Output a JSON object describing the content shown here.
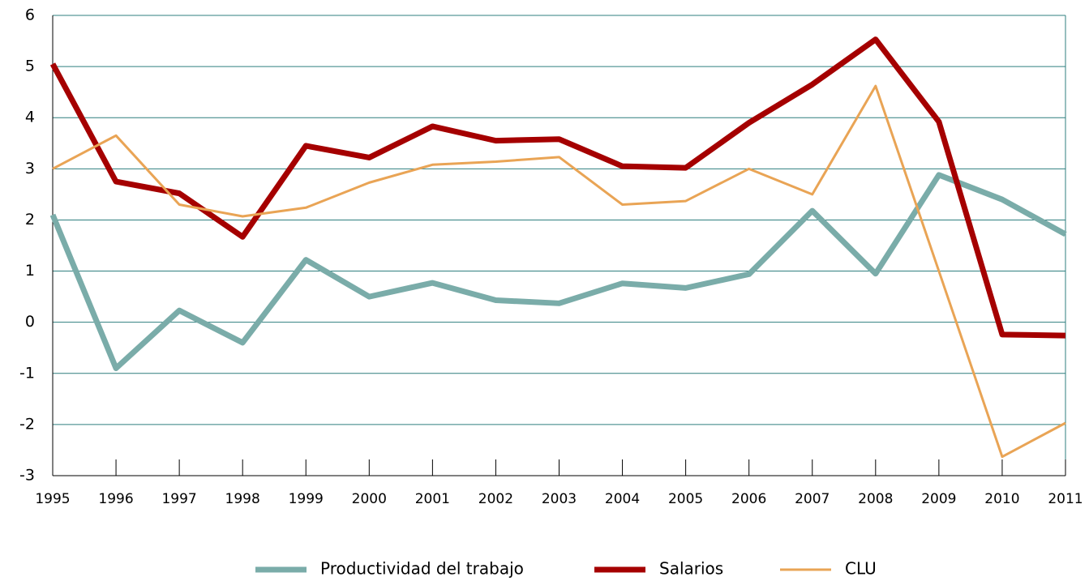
{
  "chart_data": {
    "type": "line",
    "categories": [
      "1995",
      "1996",
      "1997",
      "1998",
      "1999",
      "2000",
      "2001",
      "2002",
      "2003",
      "2004",
      "2005",
      "2006",
      "2007",
      "2008",
      "2009",
      "2010",
      "2011"
    ],
    "series": [
      {
        "name": "Productividad del trabajo",
        "color": "#7aaca9",
        "values": [
          2.1,
          -0.9,
          0.23,
          -0.4,
          1.22,
          0.5,
          0.77,
          0.43,
          0.37,
          0.76,
          0.67,
          0.94,
          2.18,
          0.95,
          2.88,
          2.4,
          1.72
        ]
      },
      {
        "name": "Salarios",
        "color": "#a50000",
        "values": [
          5.05,
          2.75,
          2.52,
          1.67,
          3.45,
          3.22,
          3.83,
          3.55,
          3.58,
          3.05,
          3.02,
          3.9,
          4.65,
          5.53,
          3.92,
          -0.24,
          -0.26
        ]
      },
      {
        "name": "CLU",
        "color": "#e9a455",
        "values": [
          3.0,
          3.65,
          2.3,
          2.07,
          2.24,
          2.73,
          3.08,
          3.14,
          3.23,
          2.3,
          2.37,
          3.0,
          2.5,
          4.62,
          1.0,
          -2.63,
          -1.97
        ]
      }
    ],
    "ylim": [
      -3,
      6
    ],
    "yticks": [
      -3,
      -2,
      -1,
      0,
      1,
      2,
      3,
      4,
      5,
      6
    ],
    "grid": true,
    "legend": "bottom"
  }
}
